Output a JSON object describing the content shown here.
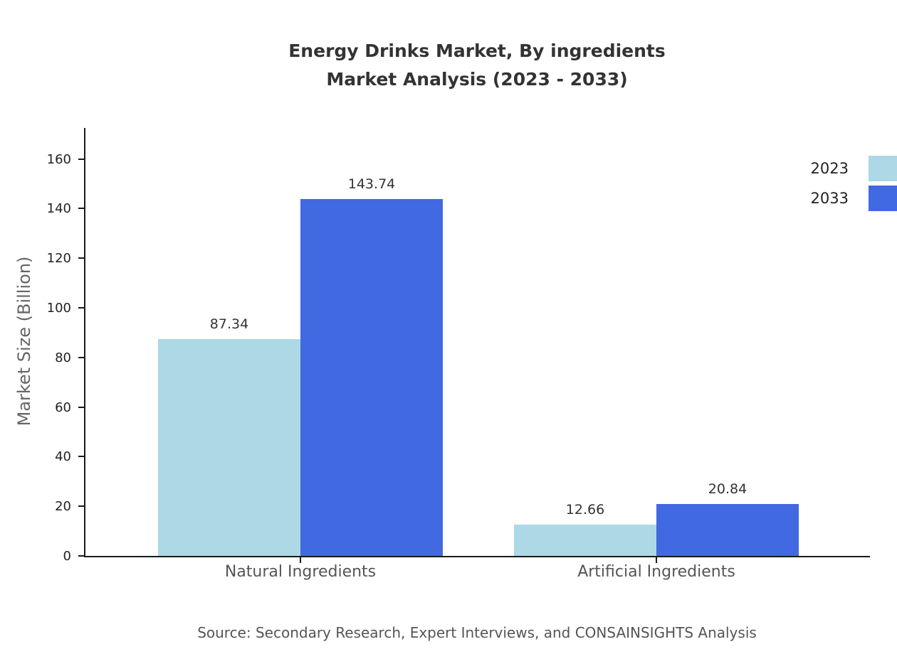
{
  "header": {
    "title_line1": "Energy Drinks Market, By ingredients",
    "title_line2": "Market Analysis (2023 - 2033)"
  },
  "chart_data": {
    "type": "bar",
    "title": "Energy Drinks Market, By ingredients Market Analysis (2023 - 2033)",
    "categories": [
      "Natural Ingredients",
      "Artificial Ingredients"
    ],
    "series": [
      {
        "name": "2023",
        "color": "#ADD8E6",
        "values": [
          87.34,
          12.66
        ]
      },
      {
        "name": "2033",
        "color": "#4169E1",
        "values": [
          143.74,
          20.84
        ]
      }
    ],
    "xlabel": "",
    "ylabel": "Market Size (Billion)",
    "yticks": [
      0,
      20,
      40,
      60,
      80,
      100,
      120,
      140,
      160
    ],
    "ylim": [
      0,
      172.5
    ],
    "grid": false,
    "legend_position": "top-right",
    "value_labels": true
  },
  "source": "Source: Secondary Research, Expert Interviews, and CONSAINSIGHTS Analysis"
}
